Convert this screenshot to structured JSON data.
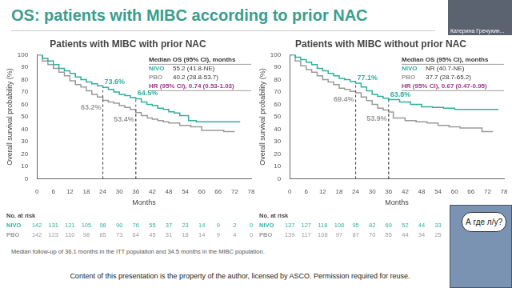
{
  "title": "OS: patients with MIBC according to prior NAC",
  "footnote": "Median follow-up of 36.1 months in the ITT population and 34.5 months in the MIBC population.",
  "copyright": "Content of this presentation is the property of the author, licensed by ASCO. Permission required for reuse.",
  "overlay": {
    "presenter": "Катерина Гречухин...",
    "speech": "А где л/у?"
  },
  "chart_data": [
    {
      "type": "line",
      "title": "Patients with MIBC with prior NAC",
      "x_label": "Months",
      "y_label": "Overall survival probability (%)",
      "xlim": [
        0,
        78
      ],
      "xticks": [
        0,
        6,
        12,
        18,
        24,
        30,
        36,
        42,
        48,
        54,
        60,
        66,
        72,
        78
      ],
      "ylim": [
        0,
        100
      ],
      "yticks": [
        0,
        10,
        20,
        30,
        40,
        50,
        60,
        70,
        80,
        90,
        100
      ],
      "grid": false,
      "series": [
        {
          "name": "NIVO",
          "color": "#2fb09c",
          "line_style": "steps",
          "x": [
            0,
            2,
            4,
            6,
            8,
            10,
            12,
            14,
            16,
            18,
            20,
            22,
            24,
            26,
            28,
            30,
            32,
            34,
            36,
            38,
            40,
            42,
            44,
            46,
            48,
            50,
            52,
            55.2,
            58,
            62,
            66,
            70,
            74
          ],
          "values": [
            100,
            97,
            95,
            92,
            89,
            87,
            85,
            82,
            80,
            78,
            76.5,
            75,
            73.6,
            72,
            70,
            68,
            67,
            65.5,
            64.5,
            62,
            60,
            59,
            57,
            56,
            54,
            53,
            51,
            47,
            46,
            46,
            46,
            46,
            46
          ]
        },
        {
          "name": "PBO",
          "color": "#9a9a9a",
          "line_style": "steps",
          "x": [
            0,
            2,
            4,
            6,
            8,
            10,
            12,
            14,
            16,
            18,
            20,
            22,
            24,
            26,
            28,
            30,
            32,
            34,
            36,
            38,
            40.2,
            42,
            44,
            46,
            48,
            52,
            56,
            60,
            64,
            68,
            72
          ],
          "values": [
            100,
            95,
            92,
            89,
            86,
            83,
            79,
            76,
            74,
            71,
            68,
            66,
            63.2,
            62,
            61,
            59,
            57.5,
            56,
            53.4,
            51,
            49,
            48,
            47,
            46,
            45,
            43,
            42,
            39,
            39,
            38,
            38
          ]
        }
      ],
      "annotations": [
        {
          "x": 24,
          "y": 73.6,
          "label": "73.6%",
          "series": "NIVO"
        },
        {
          "x": 36,
          "y": 64.5,
          "label": "64.5%",
          "series": "NIVO"
        },
        {
          "x": 24,
          "y": 63.2,
          "label": "63.2%",
          "series": "PBO"
        },
        {
          "x": 36,
          "y": 53.4,
          "label": "53.4%",
          "series": "PBO"
        }
      ],
      "inset": {
        "title": "Median OS (95% CI), months",
        "rows": [
          {
            "series": "NIVO",
            "text": "55.2 (41.8-NE)"
          },
          {
            "series": "PBO",
            "text": "40.2 (28.8-53.7)"
          },
          {
            "label": "HR (95% CI), 0.74 (0.53-1.03)",
            "color": "#a3358c"
          }
        ]
      },
      "at_risk": {
        "title": "No. at risk",
        "x": [
          0,
          6,
          12,
          18,
          24,
          30,
          36,
          42,
          48,
          54,
          60,
          66,
          72,
          78
        ],
        "rows": [
          {
            "series": "NIVO",
            "values": [
              142,
              131,
              121,
              105,
              98,
              90,
              76,
              55,
              37,
              23,
              14,
              9,
              2,
              0
            ]
          },
          {
            "series": "PBO",
            "values": [
              142,
              123,
              110,
              98,
              85,
              73,
              64,
              45,
              31,
              18,
              14,
              9,
              4,
              0
            ]
          }
        ]
      }
    },
    {
      "type": "line",
      "title": "Patients with MIBC without prior NAC",
      "x_label": "Months",
      "y_label": "Overall survival probability (%)",
      "xlim": [
        0,
        78
      ],
      "xticks": [
        0,
        6,
        12,
        18,
        24,
        30,
        36,
        42,
        48,
        54,
        60,
        66,
        72,
        78
      ],
      "ylim": [
        0,
        100
      ],
      "yticks": [
        0,
        10,
        20,
        30,
        40,
        50,
        60,
        70,
        80,
        90,
        100
      ],
      "grid": false,
      "series": [
        {
          "name": "NIVO",
          "color": "#2fb09c",
          "line_style": "steps",
          "x": [
            0,
            2,
            4,
            6,
            8,
            10,
            12,
            14,
            16,
            18,
            20,
            22,
            24,
            26,
            28,
            30,
            32,
            34,
            36,
            40,
            44,
            48,
            52,
            56,
            60,
            66,
            72,
            76
          ],
          "values": [
            100,
            98,
            96,
            94,
            92,
            89,
            87,
            85,
            83,
            81,
            80,
            78.5,
            77.1,
            74,
            71,
            68,
            66.5,
            65,
            63.8,
            62,
            60,
            58,
            57.5,
            57,
            56,
            56,
            56,
            56
          ]
        },
        {
          "name": "PBO",
          "color": "#9a9a9a",
          "line_style": "steps",
          "x": [
            0,
            2,
            4,
            6,
            8,
            10,
            12,
            14,
            16,
            18,
            20,
            22,
            24,
            26,
            28,
            30,
            32,
            34,
            36,
            37.7,
            42,
            46,
            50,
            54,
            58,
            62,
            66,
            70,
            74
          ],
          "values": [
            100,
            95,
            91,
            88,
            86,
            83,
            80,
            78,
            76,
            73,
            72,
            70.5,
            69.4,
            66,
            63,
            60,
            57,
            55.5,
            53.9,
            49,
            47,
            46,
            45,
            43,
            42,
            41,
            41,
            38,
            38
          ]
        }
      ],
      "annotations": [
        {
          "x": 24,
          "y": 77.1,
          "label": "77.1%",
          "series": "NIVO"
        },
        {
          "x": 36,
          "y": 63.8,
          "label": "63.8%",
          "series": "NIVO"
        },
        {
          "x": 24,
          "y": 69.4,
          "label": "69.4%",
          "series": "PBO"
        },
        {
          "x": 36,
          "y": 53.9,
          "label": "53.9%",
          "series": "PBO"
        }
      ],
      "inset": {
        "title": "Median OS (95% CI), months",
        "rows": [
          {
            "series": "NIVO",
            "text": "NR (40.7-NE)"
          },
          {
            "series": "PBO",
            "text": "37.7 (28.7-65.2)"
          },
          {
            "label": "HR (95% CI), 0.67 (0.47-0.95)",
            "color": "#a3358c"
          }
        ]
      },
      "at_risk": {
        "title": "No. at risk",
        "x": [
          0,
          6,
          12,
          18,
          24,
          30,
          36,
          42,
          48,
          54
        ],
        "rows": [
          {
            "series": "NIVO",
            "values": [
              137,
              127,
              118,
              108,
              95,
              82,
              69,
              52,
              44,
              33
            ]
          },
          {
            "series": "PBO",
            "values": [
              139,
              117,
              108,
              97,
              87,
              70,
              55,
              44,
              34,
              25
            ]
          }
        ]
      }
    }
  ]
}
